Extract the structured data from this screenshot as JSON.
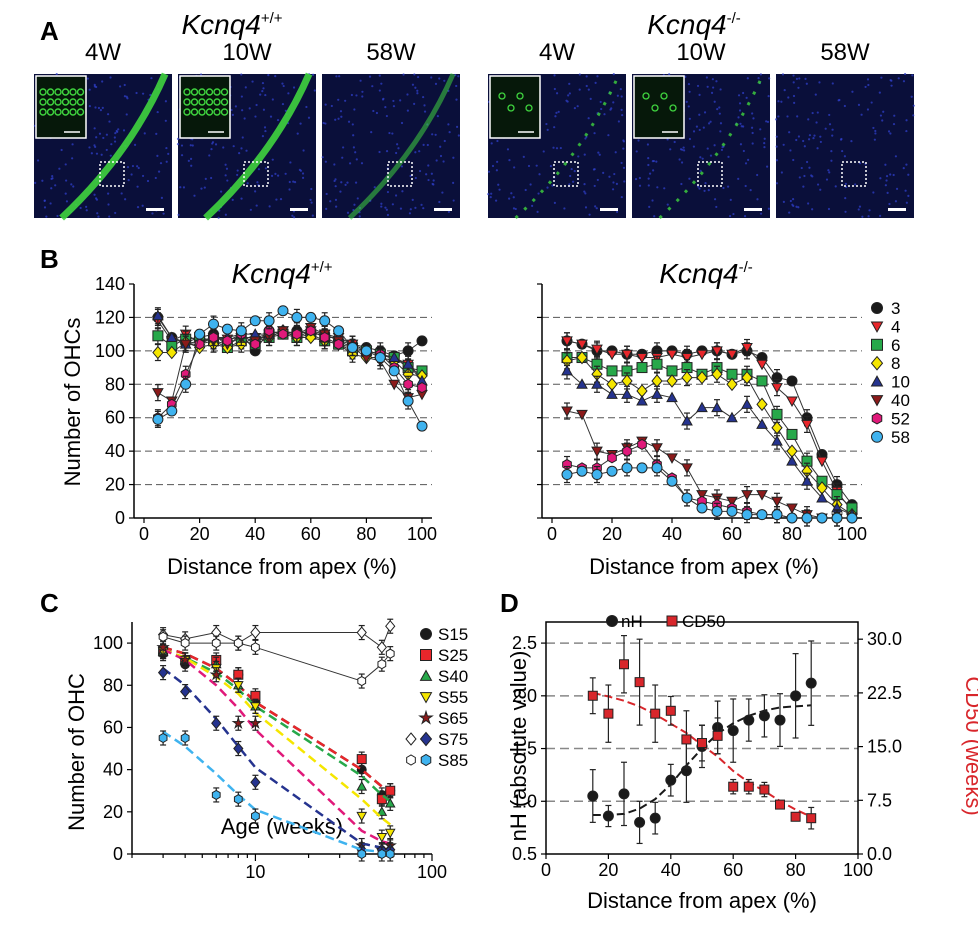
{
  "panel_letters": {
    "a": "A",
    "b": "B",
    "c": "C",
    "d": "D"
  },
  "panel_a": {
    "groups": [
      {
        "base": "Kcnq4",
        "sup": "+/+",
        "tiles": [
          "4W",
          "10W",
          "58W"
        ],
        "fill": [
          "dense",
          "dense",
          "sparse"
        ]
      },
      {
        "base": "Kcnq4",
        "sup": "-/-",
        "tiles": [
          "4W",
          "10W",
          "58W"
        ],
        "fill": [
          "patchy",
          "patchy",
          "none"
        ]
      }
    ],
    "colors": {
      "background": "#0a0f3a",
      "nuclei": "#2f3fc8",
      "ohc": "#3fd43f",
      "box": "#ffffff"
    }
  },
  "panel_b": {
    "titles": [
      {
        "base": "Kcnq4",
        "sup": "+/+"
      },
      {
        "base": "Kcnq4",
        "sup": "-/-"
      }
    ],
    "ylabel": "Number of OHCs",
    "xlabel": "Distance from apex (%)",
    "yticks": [
      "0",
      "20",
      "40",
      "60",
      "80",
      "100",
      "120",
      "140"
    ],
    "xticks": [
      "0",
      "20",
      "40",
      "60",
      "80",
      "100"
    ],
    "legend": [
      "3",
      "4",
      "6",
      "8",
      "10",
      "40",
      "52",
      "58"
    ]
  },
  "panel_c": {
    "ylabel": "Number of OHC",
    "xlabel": "Age (weeks)",
    "yticks": [
      "0",
      "20",
      "40",
      "60",
      "80",
      "100"
    ],
    "xticks": [
      "10",
      "100"
    ],
    "legend": [
      "S15",
      "S25",
      "S40",
      "S55",
      "S65",
      "S75",
      "S85"
    ]
  },
  "panel_d": {
    "ylabel_left": "nH (absolute value)",
    "ylabel_right": "CD50 (weeks)",
    "xlabel": "Distance from apex (%)",
    "yticks_left": [
      "0.5",
      "1.0",
      "1.5",
      "2.0",
      "2.5"
    ],
    "yticks_right": [
      "0.0",
      "7.5",
      "15.0",
      "22.5",
      "30.0"
    ],
    "xticks": [
      "0",
      "20",
      "40",
      "60",
      "80",
      "100"
    ],
    "legend": [
      "nH",
      "CD50"
    ],
    "right_label_color": "#d8262b"
  },
  "chart_data": [
    {
      "type": "line",
      "panel": "B-left",
      "genotype_base": "Kcnq4",
      "genotype_sup": "+/+",
      "x": [
        5,
        10,
        15,
        20,
        25,
        30,
        35,
        40,
        45,
        50,
        55,
        60,
        65,
        70,
        75,
        80,
        85,
        90,
        95,
        100
      ],
      "ylim": [
        0,
        140
      ],
      "xlim": [
        0,
        100
      ],
      "series": [
        {
          "name": "3",
          "color": "#1a1a1a",
          "marker": "circle",
          "values": [
            120,
            108,
            105,
            108,
            110,
            103,
            110,
            100,
            112,
            110,
            112,
            110,
            110,
            106,
            104,
            102,
            100,
            97,
            100,
            106
          ]
        },
        {
          "name": "4",
          "color": "#e8262b",
          "marker": "triangle-down",
          "values": [
            118,
            106,
            110,
            105,
            108,
            107,
            108,
            108,
            110,
            112,
            108,
            112,
            110,
            108,
            104,
            100,
            98,
            95,
            92,
            84
          ]
        },
        {
          "name": "6",
          "color": "#27a84a",
          "marker": "square",
          "values": [
            109,
            103,
            107,
            108,
            106,
            102,
            106,
            104,
            108,
            110,
            108,
            110,
            106,
            104,
            100,
            100,
            98,
            96,
            90,
            88
          ]
        },
        {
          "name": "8",
          "color": "#f5e600",
          "marker": "diamond",
          "values": [
            99,
            99,
            105,
            102,
            104,
            102,
            104,
            108,
            108,
            112,
            108,
            108,
            106,
            104,
            98,
            96,
            96,
            94,
            86,
            85
          ]
        },
        {
          "name": "10",
          "color": "#25338f",
          "marker": "triangle-up",
          "values": [
            121,
            108,
            104,
            106,
            108,
            108,
            110,
            110,
            110,
            112,
            110,
            112,
            108,
            108,
            104,
            100,
            98,
            96,
            92,
            82
          ]
        },
        {
          "name": "40",
          "color": "#8b1a1a",
          "marker": "triangle-down",
          "values": [
            75,
            70,
            104,
            104,
            106,
            104,
            108,
            106,
            108,
            112,
            110,
            114,
            110,
            106,
            102,
            96,
            94,
            80,
            72,
            74
          ]
        },
        {
          "name": "52",
          "color": "#e0197a",
          "marker": "hexagon",
          "values": [
            60,
            68,
            86,
            104,
            108,
            106,
            110,
            104,
            112,
            110,
            110,
            112,
            108,
            104,
            102,
            100,
            98,
            90,
            80,
            78
          ]
        },
        {
          "name": "58",
          "color": "#3fb3ef",
          "marker": "circle",
          "values": [
            59,
            64,
            80,
            110,
            116,
            113,
            112,
            118,
            118,
            124,
            120,
            120,
            118,
            112,
            102,
            100,
            96,
            88,
            70,
            55
          ]
        }
      ]
    },
    {
      "type": "line",
      "panel": "B-right",
      "genotype_base": "Kcnq4",
      "genotype_sup": "-/-",
      "x": [
        5,
        10,
        15,
        20,
        25,
        30,
        35,
        40,
        45,
        50,
        55,
        60,
        65,
        70,
        75,
        80,
        85,
        90,
        95,
        100
      ],
      "ylim": [
        0,
        140
      ],
      "xlim": [
        0,
        100
      ],
      "series": [
        {
          "name": "3",
          "color": "#1a1a1a",
          "marker": "circle",
          "values": [
            106,
            104,
            100,
            100,
            98,
            98,
            100,
            100,
            98,
            100,
            100,
            98,
            100,
            96,
            84,
            82,
            60,
            38,
            20,
            8
          ]
        },
        {
          "name": "4",
          "color": "#e8262b",
          "marker": "triangle-down",
          "values": [
            106,
            104,
            101,
            98,
            98,
            96,
            96,
            98,
            96,
            98,
            100,
            98,
            102,
            92,
            78,
            70,
            56,
            34,
            16,
            4
          ]
        },
        {
          "name": "6",
          "color": "#27a84a",
          "marker": "square",
          "values": [
            96,
            96,
            92,
            88,
            88,
            90,
            92,
            88,
            90,
            86,
            90,
            86,
            86,
            82,
            62,
            50,
            34,
            22,
            14,
            6
          ]
        },
        {
          "name": "8",
          "color": "#f5e600",
          "marker": "diamond",
          "values": [
            94,
            96,
            86,
            80,
            82,
            76,
            82,
            82,
            84,
            84,
            86,
            80,
            84,
            68,
            54,
            40,
            28,
            18,
            8,
            2
          ]
        },
        {
          "name": "10",
          "color": "#25338f",
          "marker": "triangle-up",
          "values": [
            88,
            80,
            80,
            74,
            74,
            70,
            74,
            72,
            58,
            66,
            66,
            60,
            68,
            56,
            46,
            34,
            22,
            12,
            6,
            2
          ]
        },
        {
          "name": "40",
          "color": "#8b1a1a",
          "marker": "triangle-down",
          "values": [
            64,
            62,
            40,
            38,
            42,
            46,
            42,
            36,
            30,
            14,
            12,
            10,
            14,
            14,
            10,
            6,
            2,
            0,
            0,
            0
          ]
        },
        {
          "name": "52",
          "color": "#e0197a",
          "marker": "hexagon",
          "values": [
            32,
            30,
            30,
            36,
            40,
            44,
            32,
            24,
            12,
            10,
            8,
            6,
            4,
            2,
            2,
            0,
            0,
            0,
            0,
            0
          ]
        },
        {
          "name": "58",
          "color": "#3fb3ef",
          "marker": "circle",
          "values": [
            26,
            28,
            26,
            28,
            30,
            30,
            30,
            22,
            12,
            6,
            4,
            4,
            2,
            2,
            2,
            0,
            0,
            0,
            0,
            0
          ]
        }
      ]
    },
    {
      "type": "scatter",
      "panel": "C",
      "xscale": "log",
      "xlim": [
        2,
        100
      ],
      "ylim": [
        0,
        110
      ],
      "ages": [
        3,
        4,
        6,
        8,
        10,
        40,
        52,
        58
      ],
      "series": [
        {
          "name": "S15",
          "color": "#1a1a1a",
          "marker": "circle",
          "values": [
            95,
            90,
            90,
            85,
            72,
            40,
            28,
            30
          ],
          "fit": [
            98,
            95,
            88,
            80,
            72,
            40,
            32,
            29
          ]
        },
        {
          "name": "S25",
          "color": "#e8262b",
          "marker": "square",
          "values": [
            96,
            92,
            92,
            85,
            75,
            45,
            26,
            30
          ],
          "fit": [
            98,
            95,
            88,
            80,
            72,
            40,
            32,
            29
          ]
        },
        {
          "name": "S40",
          "color": "#27a84a",
          "marker": "triangle-up",
          "values": [
            96,
            92,
            90,
            80,
            70,
            32,
            20,
            24
          ],
          "fit": [
            97,
            93,
            86,
            78,
            70,
            37,
            28,
            25
          ]
        },
        {
          "name": "S55",
          "color": "#f5e600",
          "marker": "triangle-down",
          "values": [
            96,
            92,
            88,
            80,
            70,
            18,
            8,
            10
          ],
          "fit": [
            97,
            93,
            84,
            76,
            67,
            26,
            17,
            14
          ]
        },
        {
          "name": "S65",
          "color": "#8b1a1a",
          "marker": "star",
          "values": [
            98,
            92,
            85,
            62,
            62,
            4,
            2,
            4
          ],
          "fit": [
            97,
            92,
            80,
            69,
            59,
            11,
            6,
            5
          ]
        },
        {
          "name": "S75",
          "color": "#25338f",
          "marker": "diamond",
          "values": [
            86,
            77,
            62,
            50,
            34,
            2,
            2,
            2
          ],
          "fit": [
            88,
            80,
            64,
            51,
            41,
            5,
            3,
            2
          ]
        },
        {
          "name": "S85",
          "color": "#3fb3ef",
          "marker": "hexagon",
          "values": [
            55,
            55,
            28,
            26,
            18,
            0,
            0,
            0
          ],
          "fit": [
            58,
            51,
            38,
            28,
            21,
            2,
            1,
            1
          ]
        },
        {
          "name": "open-diamond",
          "color": "#ffffff",
          "marker": "diamond-open",
          "values": [
            104,
            102,
            105,
            100,
            105,
            105,
            98,
            108
          ]
        },
        {
          "name": "open-hexagon",
          "color": "#ffffff",
          "marker": "hexagon-open",
          "values": [
            103,
            100,
            100,
            100,
            98,
            82,
            90,
            95
          ]
        }
      ]
    },
    {
      "type": "scatter",
      "panel": "D",
      "xlim": [
        0,
        100
      ],
      "ylim_left": [
        0.5,
        2.7
      ],
      "ylim_right": [
        0,
        32.4
      ],
      "x": [
        15,
        20,
        25,
        30,
        35,
        40,
        45,
        50,
        55,
        60,
        65,
        70,
        75,
        80,
        85
      ],
      "series": [
        {
          "name": "nH",
          "axis": "left",
          "color": "#1a1a1a",
          "marker": "circle",
          "values": [
            1.05,
            0.86,
            1.07,
            0.8,
            0.84,
            1.2,
            1.29,
            1.52,
            1.7,
            1.67,
            1.77,
            1.81,
            1.77,
            2.0,
            2.12
          ],
          "errors": [
            0.25,
            0.1,
            0.3,
            0.2,
            0.15,
            0.15,
            0.3,
            0.2,
            0.25,
            0.3,
            0.2,
            0.2,
            0.25,
            0.4,
            0.4
          ],
          "fit_x": [
            15,
            20,
            25,
            30,
            35,
            40,
            45,
            50,
            55,
            60,
            65,
            70,
            75,
            80,
            85
          ],
          "fit": [
            0.87,
            0.87,
            0.88,
            0.93,
            1.02,
            1.16,
            1.34,
            1.5,
            1.64,
            1.74,
            1.81,
            1.86,
            1.89,
            1.9,
            1.91
          ]
        },
        {
          "name": "CD50",
          "axis": "right",
          "color": "#d8262b",
          "marker": "square",
          "values": [
            22.1,
            19.6,
            26.5,
            24.0,
            19.6,
            20.0,
            16.0,
            15.5,
            16.5,
            9.4,
            9.4,
            9.0,
            6.9,
            5.2,
            5.0
          ],
          "errors": [
            2.5,
            4.0,
            4.0,
            6.0,
            4.0,
            2.0,
            4.0,
            2.5,
            2.5,
            1.0,
            1.0,
            1.0,
            0.5,
            0.5,
            1.5
          ],
          "fit_x": [
            15,
            20,
            25,
            30,
            35,
            40,
            45,
            50,
            55,
            60,
            65,
            70,
            75,
            80,
            85
          ],
          "fit": [
            22.5,
            22.0,
            21.4,
            20.6,
            19.5,
            18.2,
            16.9,
            15.2,
            13.6,
            11.6,
            10.0,
            8.8,
            7.4,
            6.2,
            5.2
          ]
        }
      ]
    }
  ]
}
